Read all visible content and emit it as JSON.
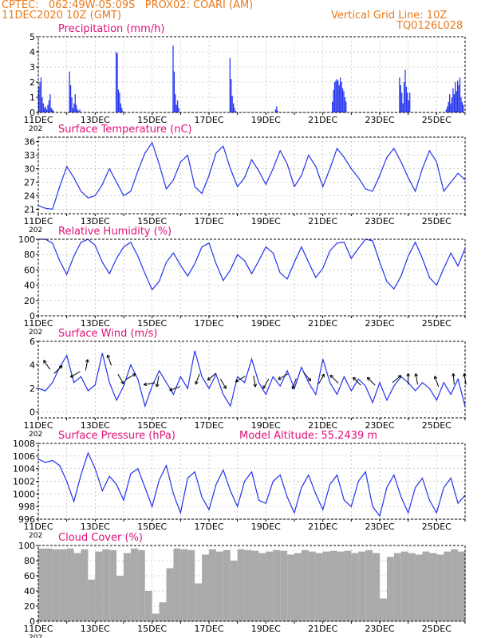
{
  "header": {
    "line1_left": "CPTEC:   062:49W-05:09S   PROX02: COARI (AM)",
    "line2_left": "11DEC2020 10Z (GMT)",
    "line1_right": "Vertical Grid Line: 10Z",
    "line2_right": "TQ0126L028"
  },
  "colors": {
    "header": "#e87a1e",
    "title": "#e0107a",
    "series": "#2233ee",
    "cloud": "#aaaaaa",
    "axis": "#000000"
  },
  "x_tick_labels": [
    "11DEC",
    "13DEC",
    "15DEC",
    "17DEC",
    "19DEC",
    "21DEC",
    "23DEC",
    "25DEC"
  ],
  "x_stub": "202",
  "chart_data": [
    {
      "type": "bar",
      "title": "Precipitation (mm/h)",
      "ylim": [
        0,
        5
      ],
      "yticks": [
        0,
        1,
        2,
        3,
        4,
        5
      ],
      "x": [
        0.0,
        0.04,
        0.08,
        0.12,
        0.16,
        0.2,
        0.24,
        0.28,
        0.32,
        0.36,
        0.4,
        0.44,
        0.48,
        0.52,
        1.08,
        1.12,
        1.16,
        1.2,
        1.24,
        1.28,
        1.32,
        1.36,
        1.4,
        1.44,
        2.72,
        2.76,
        2.8,
        2.84,
        2.88,
        2.92,
        2.96,
        3.0,
        4.72,
        4.76,
        4.8,
        4.84,
        4.88,
        4.92,
        6.72,
        6.76,
        6.8,
        6.84,
        6.88,
        6.92,
        8.32,
        8.36,
        8.4,
        10.32,
        10.36,
        10.4,
        10.44,
        10.48,
        10.52,
        10.56,
        10.6,
        10.64,
        10.68,
        10.72,
        10.76,
        10.8,
        12.68,
        12.72,
        12.76,
        12.8,
        12.84,
        12.88,
        12.92,
        12.96,
        13.0,
        13.04,
        14.32,
        14.36,
        14.4,
        14.44,
        14.48,
        14.52,
        14.56,
        14.6,
        14.64,
        14.68,
        14.72,
        14.76,
        14.8,
        14.84,
        14.88,
        14.92
      ],
      "values": [
        1.7,
        2.0,
        2.3,
        1.0,
        0.6,
        0.3,
        0.4,
        0.2,
        0.5,
        0.8,
        1.2,
        0.3,
        0.2,
        0.1,
        2.7,
        1.8,
        1.0,
        0.3,
        0.6,
        1.2,
        0.5,
        0.2,
        0.1,
        0.2,
        4.0,
        3.9,
        1.5,
        1.3,
        0.6,
        0.3,
        0.1,
        0.0,
        4.4,
        2.7,
        1.2,
        0.5,
        0.8,
        0.3,
        3.6,
        2.2,
        1.1,
        0.6,
        0.3,
        0.1,
        0.2,
        0.4,
        0.1,
        0.7,
        1.5,
        2.0,
        2.1,
        2.2,
        2.1,
        1.8,
        2.3,
        2.0,
        1.6,
        1.4,
        1.0,
        0.7,
        2.3,
        1.8,
        1.3,
        0.6,
        2.0,
        2.8,
        1.7,
        1.3,
        0.8,
        1.3,
        0.2,
        0.4,
        0.7,
        1.2,
        0.6,
        1.0,
        1.6,
        1.2,
        2.0,
        1.4,
        2.1,
        1.8,
        2.3,
        1.0,
        0.7,
        0.5
      ]
    },
    {
      "type": "line",
      "title": "Surface Temperature (nC)",
      "ylim": [
        20,
        37
      ],
      "yticks": [
        21,
        24,
        27,
        30,
        33,
        36
      ],
      "x": [
        0.0,
        0.25,
        0.5,
        0.75,
        1.0,
        1.25,
        1.5,
        1.75,
        2.0,
        2.25,
        2.5,
        2.75,
        3.0,
        3.25,
        3.5,
        3.75,
        4.0,
        4.25,
        4.5,
        4.75,
        5.0,
        5.25,
        5.5,
        5.75,
        6.0,
        6.25,
        6.5,
        6.75,
        7.0,
        7.25,
        7.5,
        7.75,
        8.0,
        8.25,
        8.5,
        8.75,
        9.0,
        9.25,
        9.5,
        9.75,
        10.0,
        10.25,
        10.5,
        10.75,
        11.0,
        11.25,
        11.5,
        11.75,
        12.0,
        12.25,
        12.5,
        12.75,
        13.0,
        13.25,
        13.5,
        13.75,
        14.0,
        14.25,
        14.5,
        14.75,
        15.0
      ],
      "values": [
        21.8,
        21.2,
        21.0,
        26.0,
        30.5,
        28.0,
        25.0,
        23.5,
        24.0,
        26.5,
        30.0,
        27.0,
        24.0,
        25.0,
        29.5,
        33.5,
        35.8,
        31.0,
        25.5,
        27.5,
        31.5,
        33.0,
        26.0,
        24.5,
        28.5,
        33.5,
        35.0,
        30.0,
        26.0,
        28.0,
        32.0,
        29.5,
        26.5,
        30.0,
        34.0,
        31.0,
        26.0,
        28.5,
        33.0,
        30.5,
        26.0,
        30.0,
        34.5,
        32.5,
        30.0,
        28.0,
        25.5,
        25.0,
        28.5,
        32.5,
        34.5,
        31.5,
        28.0,
        25.0,
        30.0,
        34.0,
        31.5,
        25.0,
        27.0,
        29.0,
        27.5
      ]
    },
    {
      "type": "line",
      "title": "Relative Humidity (%)",
      "ylim": [
        0,
        100
      ],
      "yticks": [
        0,
        20,
        40,
        60,
        80,
        100
      ],
      "x": [
        0.0,
        0.25,
        0.5,
        0.75,
        1.0,
        1.25,
        1.5,
        1.75,
        2.0,
        2.25,
        2.5,
        2.75,
        3.0,
        3.25,
        3.5,
        3.75,
        4.0,
        4.25,
        4.5,
        4.75,
        5.0,
        5.25,
        5.5,
        5.75,
        6.0,
        6.25,
        6.5,
        6.75,
        7.0,
        7.25,
        7.5,
        7.75,
        8.0,
        8.25,
        8.5,
        8.75,
        9.0,
        9.25,
        9.5,
        9.75,
        10.0,
        10.25,
        10.5,
        10.75,
        11.0,
        11.25,
        11.5,
        11.75,
        12.0,
        12.25,
        12.5,
        12.75,
        13.0,
        13.25,
        13.5,
        13.75,
        14.0,
        14.25,
        14.5,
        14.75,
        15.0
      ],
      "values": [
        100.0,
        100.0,
        95.0,
        72.0,
        54.0,
        78.0,
        96.0,
        100.0,
        92.0,
        70.0,
        55.0,
        75.0,
        90.0,
        96.0,
        78.0,
        55.0,
        34.0,
        45.0,
        70.0,
        82.0,
        66.0,
        52.0,
        68.0,
        90.0,
        95.0,
        68.0,
        46.0,
        60.0,
        80.0,
        72.0,
        55.0,
        72.0,
        90.0,
        82.0,
        56.0,
        48.0,
        70.0,
        90.0,
        70.0,
        50.0,
        62.0,
        85.0,
        95.0,
        96.0,
        75.0,
        88.0,
        100.0,
        98.0,
        70.0,
        45.0,
        35.0,
        52.0,
        78.0,
        96.0,
        75.0,
        50.0,
        40.0,
        62.0,
        82.0,
        65.0,
        88.0
      ]
    },
    {
      "type": "line",
      "title": "Surface Wind (m/s)",
      "ylim": [
        -0.5,
        6
      ],
      "yticks": [
        0,
        2,
        4,
        6
      ],
      "x": [
        0.0,
        0.25,
        0.5,
        0.75,
        1.0,
        1.25,
        1.5,
        1.75,
        2.0,
        2.25,
        2.5,
        2.75,
        3.0,
        3.25,
        3.5,
        3.75,
        4.0,
        4.25,
        4.5,
        4.75,
        5.0,
        5.25,
        5.5,
        5.75,
        6.0,
        6.25,
        6.5,
        6.75,
        7.0,
        7.25,
        7.5,
        7.75,
        8.0,
        8.25,
        8.5,
        8.75,
        9.0,
        9.25,
        9.5,
        9.75,
        10.0,
        10.25,
        10.5,
        10.75,
        11.0,
        11.25,
        11.5,
        11.75,
        12.0,
        12.25,
        12.5,
        12.75,
        13.0,
        13.25,
        13.5,
        13.75,
        14.0,
        14.25,
        14.5,
        14.75,
        15.0
      ],
      "values": [
        2.0,
        1.8,
        2.5,
        3.8,
        4.8,
        2.5,
        3.0,
        1.8,
        2.3,
        5.0,
        2.5,
        1.0,
        2.2,
        4.0,
        2.8,
        0.5,
        2.2,
        3.5,
        2.5,
        1.5,
        3.0,
        2.0,
        5.2,
        3.0,
        2.0,
        3.2,
        1.5,
        0.5,
        3.0,
        2.5,
        4.5,
        2.5,
        1.5,
        3.0,
        2.2,
        3.5,
        2.0,
        3.8,
        2.5,
        1.5,
        4.5,
        2.5,
        1.5,
        3.0,
        1.8,
        2.8,
        2.2,
        0.8,
        2.5,
        1.0,
        2.2,
        3.0,
        2.5,
        1.8,
        2.5,
        2.0,
        1.0,
        2.5,
        1.5,
        2.8,
        0.5
      ]
    },
    {
      "type": "line",
      "title": "Surface Pressure (hPa)",
      "annotation": "Model Altitude: 55.2439  m",
      "ylim": [
        996,
        1008
      ],
      "yticks": [
        996,
        998,
        1000,
        1002,
        1004,
        1006,
        1008
      ],
      "x": [
        0.0,
        0.25,
        0.5,
        0.75,
        1.0,
        1.25,
        1.5,
        1.75,
        2.0,
        2.25,
        2.5,
        2.75,
        3.0,
        3.25,
        3.5,
        3.75,
        4.0,
        4.25,
        4.5,
        4.75,
        5.0,
        5.25,
        5.5,
        5.75,
        6.0,
        6.25,
        6.5,
        6.75,
        7.0,
        7.25,
        7.5,
        7.75,
        8.0,
        8.25,
        8.5,
        8.75,
        9.0,
        9.25,
        9.5,
        9.75,
        10.0,
        10.25,
        10.5,
        10.75,
        11.0,
        11.25,
        11.5,
        11.75,
        12.0,
        12.25,
        12.5,
        12.75,
        13.0,
        13.25,
        13.5,
        13.75,
        14.0,
        14.25,
        14.5,
        14.75,
        15.0
      ],
      "values": [
        1005.5,
        1005.0,
        1005.3,
        1004.5,
        1002.0,
        998.8,
        1003.0,
        1006.5,
        1004.0,
        1000.5,
        1002.8,
        1001.5,
        999.0,
        1003.2,
        1004.0,
        1001.0,
        998.0,
        1002.2,
        1004.5,
        1000.0,
        997.0,
        1002.5,
        1003.5,
        999.5,
        997.5,
        1001.5,
        1003.8,
        1000.5,
        998.0,
        1002.0,
        1003.5,
        999.0,
        998.5,
        1002.0,
        1003.0,
        999.5,
        997.0,
        1001.0,
        1003.0,
        1000.0,
        997.5,
        1001.5,
        1003.0,
        999.0,
        998.0,
        1002.0,
        1003.5,
        998.0,
        996.5,
        1001.0,
        1003.0,
        999.5,
        997.0,
        1001.0,
        1002.5,
        999.0,
        997.0,
        1001.0,
        1002.5,
        998.5,
        999.8
      ]
    },
    {
      "type": "area",
      "title": "Cloud Cover (%)",
      "ylim": [
        0,
        100
      ],
      "yticks": [
        0,
        20,
        40,
        60,
        80,
        100
      ],
      "x": [
        0.0,
        0.25,
        0.5,
        0.75,
        1.0,
        1.25,
        1.5,
        1.75,
        2.0,
        2.25,
        2.5,
        2.75,
        3.0,
        3.25,
        3.5,
        3.75,
        4.0,
        4.25,
        4.5,
        4.75,
        5.0,
        5.25,
        5.5,
        5.75,
        6.0,
        6.25,
        6.5,
        6.75,
        7.0,
        7.25,
        7.5,
        7.75,
        8.0,
        8.25,
        8.5,
        8.75,
        9.0,
        9.25,
        9.5,
        9.75,
        10.0,
        10.25,
        10.5,
        10.75,
        11.0,
        11.25,
        11.5,
        11.75,
        12.0,
        12.25,
        12.5,
        12.75,
        13.0,
        13.25,
        13.5,
        13.75,
        14.0,
        14.25,
        14.5,
        14.75,
        15.0
      ],
      "values": [
        96.0,
        96.0,
        95.0,
        95.0,
        96.0,
        90.0,
        95.0,
        55.0,
        92.0,
        95.0,
        94.0,
        60.0,
        90.0,
        96.0,
        94.0,
        40.0,
        10.0,
        25.0,
        70.0,
        96.0,
        95.0,
        94.0,
        50.0,
        88.0,
        95.0,
        92.0,
        94.0,
        80.0,
        95.0,
        94.0,
        93.0,
        90.0,
        92.0,
        94.0,
        93.0,
        88.0,
        90.0,
        94.0,
        92.0,
        90.0,
        92.0,
        93.0,
        92.0,
        93.0,
        90.0,
        92.0,
        94.0,
        90.0,
        30.0,
        85.0,
        90.0,
        92.0,
        90.0,
        88.0,
        92.0,
        90.0,
        88.0,
        92.0,
        95.0,
        92.0,
        94.0
      ]
    }
  ],
  "wind_vectors": [
    {
      "x": 0.3,
      "speed": 4.0,
      "dir_deg": 125
    },
    {
      "x": 0.7,
      "speed": 3.6,
      "dir_deg": 45
    },
    {
      "x": 1.3,
      "speed": 3.2,
      "dir_deg": 210
    },
    {
      "x": 1.7,
      "speed": 4.0,
      "dir_deg": 80
    },
    {
      "x": 2.5,
      "speed": 4.4,
      "dir_deg": 110
    },
    {
      "x": 2.9,
      "speed": 2.8,
      "dir_deg": 300
    },
    {
      "x": 3.25,
      "speed": 3.0,
      "dir_deg": 30
    },
    {
      "x": 3.9,
      "speed": 2.4,
      "dir_deg": 190
    },
    {
      "x": 4.2,
      "speed": 2.6,
      "dir_deg": 260
    },
    {
      "x": 4.8,
      "speed": 2.0,
      "dir_deg": 200
    },
    {
      "x": 5.6,
      "speed": 2.8,
      "dir_deg": 250
    },
    {
      "x": 6.1,
      "speed": 3.0,
      "dir_deg": 220
    },
    {
      "x": 6.5,
      "speed": 2.4,
      "dir_deg": 300
    },
    {
      "x": 7.1,
      "speed": 2.8,
      "dir_deg": 210
    },
    {
      "x": 7.6,
      "speed": 2.6,
      "dir_deg": 280
    },
    {
      "x": 8.0,
      "speed": 2.4,
      "dir_deg": 240
    },
    {
      "x": 8.6,
      "speed": 3.0,
      "dir_deg": 210
    },
    {
      "x": 9.0,
      "speed": 2.4,
      "dir_deg": 250
    },
    {
      "x": 9.45,
      "speed": 3.0,
      "dir_deg": 310
    },
    {
      "x": 9.95,
      "speed": 2.8,
      "dir_deg": 60
    },
    {
      "x": 10.4,
      "speed": 2.8,
      "dir_deg": 135
    },
    {
      "x": 11.2,
      "speed": 2.6,
      "dir_deg": 135
    },
    {
      "x": 11.7,
      "speed": 2.6,
      "dir_deg": 135
    },
    {
      "x": 12.6,
      "speed": 2.8,
      "dir_deg": 40
    },
    {
      "x": 13.0,
      "speed": 2.8,
      "dir_deg": 90
    },
    {
      "x": 13.3,
      "speed": 2.8,
      "dir_deg": 100
    },
    {
      "x": 14.0,
      "speed": 2.6,
      "dir_deg": 110
    },
    {
      "x": 14.6,
      "speed": 2.8,
      "dir_deg": 95
    },
    {
      "x": 15.0,
      "speed": 2.8,
      "dir_deg": 100
    }
  ]
}
